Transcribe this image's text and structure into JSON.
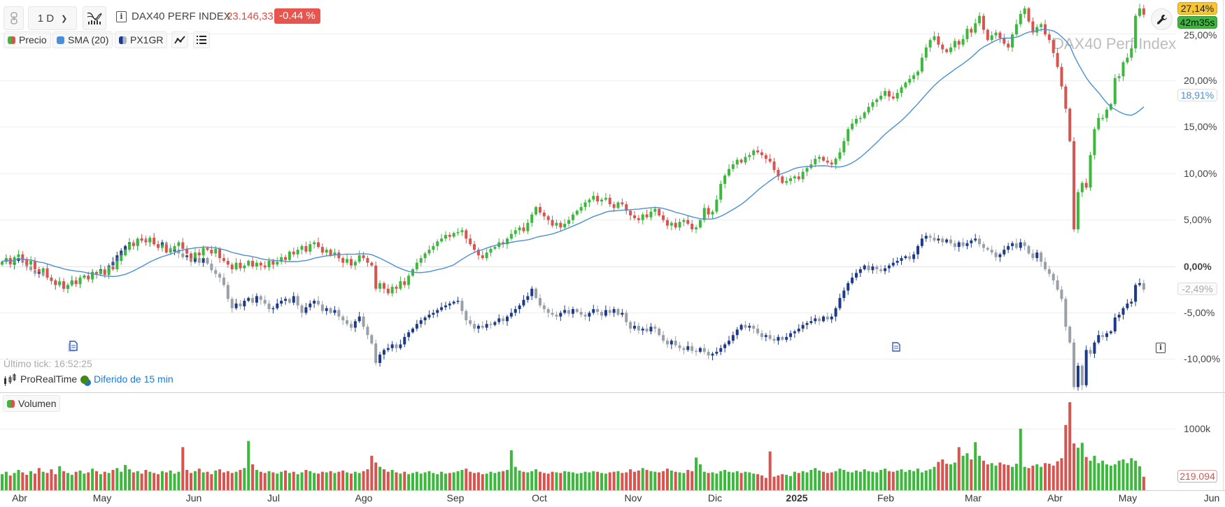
{
  "header": {
    "interval": "1 D",
    "instrument": "DAX40 PERF INDEX",
    "price": "23.146,33",
    "change": "-0.44 %"
  },
  "legend": {
    "price_label": "Precio",
    "sma_label": "SMA (20)",
    "compare_label": "PX1GR",
    "volume_label": "Volumen"
  },
  "watermark": "DAX40 Perf Index",
  "badges": {
    "last_pct": "27,14%",
    "countdown": "42m35s",
    "sma_value": "18,91%",
    "compare_value": "-2,49%",
    "last_volume": "219.094"
  },
  "footer": {
    "last_tick": "Último tick: 16:52:25",
    "provider": "ProRealTime",
    "delay": "Diferido de 15 min"
  },
  "colors": {
    "up": "#3cb93c",
    "down": "#d9534f",
    "compare_up": "#1c3a8c",
    "compare_down": "#9aa0a8",
    "sma": "#4a8fd9",
    "last_badge": "#f7c531",
    "countdown_badge": "#3cb93c",
    "change_badge": "#e8554e"
  },
  "chart_data": {
    "type": "candlestick",
    "y_axis": {
      "ticks": [
        "25,00%",
        "20,00%",
        "15,00%",
        "10,00%",
        "5,00%",
        "0,00%",
        "-5,00%",
        "-10,00%"
      ],
      "tick_values": [
        25,
        20,
        15,
        10,
        5,
        0,
        -5,
        -10
      ],
      "unit": "%"
    },
    "volume_axis": {
      "ticks": [
        "1000k"
      ],
      "tick_values": [
        1000
      ]
    },
    "x_axis": {
      "ticks": [
        "Abr",
        "May",
        "Jun",
        "Jul",
        "Ago",
        "Sep",
        "Oct",
        "Nov",
        "Dic",
        "2025",
        "Feb",
        "Mar",
        "Abr",
        "May",
        "Jun"
      ]
    },
    "grid": true,
    "series": [
      {
        "name": "DAX40 PERF INDEX",
        "kind": "candles",
        "closes_pct": [
          0.5,
          0.9,
          0.3,
          1.0,
          1.3,
          0.8,
          0.2,
          0.6,
          -0.3,
          -0.6,
          -0.2,
          -1.2,
          -1.5,
          -2.0,
          -1.6,
          -2.4,
          -2.0,
          -1.5,
          -1.9,
          -1.2,
          -1.0,
          -1.4,
          -0.6,
          -0.8,
          -0.4,
          -0.9,
          0.0,
          -0.3,
          0.6,
          1.2,
          1.8,
          2.5,
          2.2,
          3.0,
          2.8,
          2.6,
          3.1,
          2.4,
          2.0,
          2.3,
          1.5,
          1.8,
          2.2,
          2.6,
          1.9,
          1.4,
          0.9,
          1.5,
          1.2,
          2.0,
          1.8,
          1.4,
          1.9,
          0.9,
          0.6,
          0.2,
          -0.3,
          0.4,
          -0.2,
          0.1,
          0.6,
          0.0,
          0.4,
          0.1,
          -0.1,
          0.6,
          0.2,
          0.5,
          1.0,
          0.7,
          1.6,
          1.3,
          1.8,
          2.2,
          1.6,
          2.4,
          2.6,
          2.1,
          1.5,
          1.8,
          1.2,
          1.5,
          0.9,
          0.4,
          0.8,
          0.1,
          0.5,
          1.2,
          0.9,
          0.4,
          0.1,
          -2.4,
          -1.8,
          -2.4,
          -2.9,
          -2.2,
          -2.4,
          -1.6,
          -2.0,
          -1.0,
          -0.3,
          0.4,
          0.9,
          1.4,
          1.8,
          2.2,
          2.7,
          3.0,
          3.4,
          3.2,
          3.6,
          3.7,
          3.9,
          3.0,
          2.4,
          1.8,
          1.2,
          0.9,
          1.5,
          1.9,
          2.1,
          2.6,
          2.4,
          3.0,
          3.5,
          3.9,
          4.2,
          3.8,
          4.7,
          5.6,
          6.4,
          5.8,
          5.4,
          5.0,
          4.4,
          4.7,
          4.2,
          4.6,
          5.0,
          5.6,
          6.0,
          6.4,
          6.9,
          7.2,
          7.6,
          7.0,
          7.2,
          7.4,
          6.7,
          6.3,
          6.9,
          6.7,
          6.0,
          5.5,
          5.2,
          5.0,
          5.6,
          5.3,
          5.9,
          6.2,
          5.5,
          5.0,
          4.4,
          4.7,
          4.2,
          4.8,
          5.0,
          4.6,
          4.0,
          4.2,
          5.0,
          6.3,
          5.6,
          5.9,
          7.2,
          8.9,
          9.8,
          10.5,
          11.0,
          11.5,
          11.2,
          11.8,
          12.0,
          12.5,
          12.3,
          12.0,
          11.6,
          11.3,
          10.4,
          9.7,
          9.0,
          9.2,
          9.5,
          9.7,
          9.4,
          10.2,
          10.6,
          11.0,
          11.6,
          11.8,
          11.4,
          11.2,
          11.0,
          11.6,
          12.3,
          13.5,
          14.8,
          15.4,
          15.9,
          16.0,
          16.6,
          17.2,
          17.7,
          18.0,
          18.4,
          18.9,
          18.3,
          18.1,
          18.7,
          19.3,
          19.8,
          20.2,
          20.6,
          21.0,
          22.5,
          23.6,
          24.4,
          24.8,
          23.9,
          23.4,
          23.1,
          23.6,
          24.3,
          23.9,
          24.5,
          25.6,
          25.2,
          26.2,
          27.0,
          25.5,
          24.4,
          24.9,
          25.2,
          24.6,
          24.0,
          23.6,
          25.0,
          26.1,
          27.2,
          27.8,
          26.4,
          25.2,
          25.8,
          26.1,
          25.0,
          24.4,
          23.0,
          21.5,
          19.4,
          17.0,
          13.5,
          4.0,
          8.0,
          9.0,
          8.5,
          12.0,
          14.8,
          16.0,
          16.0,
          16.9,
          17.5,
          20.3,
          20.5,
          22.0,
          22.5,
          23.5,
          27.0,
          27.8,
          27.14
        ]
      },
      {
        "name": "PX1GR",
        "kind": "candles",
        "closes_pct": [
          0.5,
          0.8,
          0.2,
          0.6,
          0.9,
          0.4,
          0.0,
          -0.4,
          -0.8,
          -0.6,
          -1.0,
          -1.2,
          -1.6,
          -2.0,
          -1.8,
          -2.4,
          -2.0,
          -1.6,
          -1.9,
          -1.2,
          -1.0,
          -1.3,
          -0.6,
          -0.8,
          -0.3,
          -0.6,
          0.1,
          0.5,
          1.2,
          1.7,
          2.2,
          2.6,
          2.3,
          2.8,
          3.0,
          2.6,
          2.9,
          2.4,
          2.2,
          2.6,
          2.0,
          1.6,
          1.8,
          1.4,
          1.0,
          1.2,
          0.5,
          0.9,
          0.4,
          0.9,
          0.3,
          -0.4,
          -0.8,
          -1.2,
          -2.0,
          -3.5,
          -4.5,
          -4.0,
          -4.3,
          -3.7,
          -3.4,
          -3.9,
          -3.2,
          -3.6,
          -4.0,
          -4.6,
          -4.5,
          -4.0,
          -3.7,
          -3.5,
          -3.9,
          -3.2,
          -4.2,
          -5.0,
          -4.4,
          -4.0,
          -3.7,
          -4.1,
          -4.8,
          -4.5,
          -5.0,
          -4.7,
          -5.4,
          -5.8,
          -6.2,
          -6.6,
          -5.9,
          -5.4,
          -6.5,
          -7.4,
          -8.3,
          -10.4,
          -9.5,
          -9.0,
          -8.8,
          -8.4,
          -8.8,
          -8.4,
          -7.6,
          -7.1,
          -6.7,
          -6.2,
          -5.8,
          -5.5,
          -5.2,
          -5.0,
          -4.7,
          -4.4,
          -4.2,
          -4.0,
          -3.8,
          -3.7,
          -4.8,
          -5.8,
          -6.2,
          -6.7,
          -6.4,
          -6.6,
          -6.2,
          -6.3,
          -6.0,
          -5.6,
          -5.9,
          -5.4,
          -5.0,
          -4.6,
          -4.2,
          -3.6,
          -3.2,
          -2.4,
          -3.4,
          -4.2,
          -4.6,
          -5.0,
          -5.2,
          -5.4,
          -5.0,
          -4.7,
          -5.1,
          -4.6,
          -4.9,
          -5.2,
          -5.4,
          -5.0,
          -4.6,
          -4.9,
          -5.3,
          -4.7,
          -5.0,
          -4.6,
          -5.2,
          -5.0,
          -6.0,
          -6.7,
          -6.4,
          -6.9,
          -6.7,
          -7.0,
          -6.5,
          -6.7,
          -7.4,
          -8.0,
          -8.4,
          -8.0,
          -8.5,
          -8.8,
          -9.0,
          -8.6,
          -9.1,
          -9.2,
          -8.8,
          -9.2,
          -9.6,
          -9.4,
          -9.2,
          -8.8,
          -8.4,
          -8.0,
          -7.4,
          -6.8,
          -6.3,
          -6.6,
          -6.4,
          -6.7,
          -7.2,
          -7.6,
          -7.4,
          -7.8,
          -8.0,
          -7.6,
          -7.9,
          -7.6,
          -7.2,
          -7.0,
          -6.7,
          -6.3,
          -6.1,
          -5.9,
          -5.6,
          -5.9,
          -5.4,
          -5.7,
          -5.4,
          -4.5,
          -3.4,
          -2.6,
          -1.8,
          -1.2,
          -0.7,
          -0.3,
          0.1,
          -0.4,
          0.0,
          -0.3,
          -0.5,
          -0.2,
          0.1,
          0.4,
          0.6,
          0.9,
          1.1,
          0.8,
          1.3,
          2.2,
          3.0,
          3.3,
          3.1,
          2.8,
          3.0,
          2.6,
          2.9,
          2.5,
          2.1,
          2.6,
          2.2,
          2.5,
          2.8,
          3.0,
          2.4,
          2.0,
          1.8,
          1.5,
          1.0,
          1.3,
          1.8,
          2.2,
          2.5,
          2.0,
          2.6,
          2.2,
          1.4,
          0.9,
          1.5,
          0.5,
          -0.3,
          -0.8,
          -1.5,
          -2.5,
          -3.5,
          -6.5,
          -8.2,
          -13.0,
          -10.7,
          -12.8,
          -9.0,
          -9.4,
          -8.2,
          -7.4,
          -7.6,
          -7.2,
          -7.0,
          -5.5,
          -5.2,
          -4.5,
          -4.0,
          -3.8,
          -2.0,
          -1.8,
          -2.49
        ]
      },
      {
        "name": "SMA (20)",
        "kind": "line",
        "period": 20,
        "of": "DAX40 PERF INDEX",
        "last_pct": 18.91
      },
      {
        "name": "Volumen",
        "kind": "bars",
        "unit": "k",
        "values": [
          260,
          300,
          240,
          280,
          330,
          290,
          250,
          310,
          270,
          360,
          300,
          280,
          340,
          260,
          390,
          310,
          280,
          250,
          300,
          320,
          270,
          290,
          350,
          310,
          260,
          300,
          280,
          330,
          360,
          300,
          410,
          340,
          290,
          310,
          270,
          330,
          300,
          280,
          260,
          310,
          290,
          320,
          270,
          300,
          700,
          330,
          280,
          310,
          350,
          290,
          300,
          260,
          320,
          340,
          290,
          310,
          280,
          300,
          330,
          360,
          800,
          420,
          330,
          300,
          280,
          310,
          290,
          270,
          300,
          320,
          280,
          300,
          260,
          290,
          330,
          310,
          280,
          270,
          300,
          290,
          310,
          280,
          300,
          320,
          290,
          270,
          300,
          280,
          310,
          340,
          560,
          450,
          380,
          340,
          300,
          330,
          290,
          270,
          300,
          260,
          280,
          300,
          270,
          290,
          310,
          280,
          260,
          300,
          270,
          280,
          290,
          310,
          330,
          350,
          300,
          280,
          290,
          260,
          270,
          300,
          280,
          300,
          310,
          330,
          650,
          380,
          320,
          300,
          290,
          310,
          340,
          300,
          280,
          270,
          300,
          290,
          280,
          310,
          300,
          290,
          270,
          280,
          300,
          290,
          310,
          300,
          280,
          270,
          290,
          300,
          310,
          280,
          290,
          340,
          300,
          320,
          360,
          330,
          310,
          300,
          290,
          310,
          350,
          320,
          300,
          290,
          280,
          330,
          310,
          530,
          420,
          300,
          280,
          290,
          270,
          310,
          330,
          300,
          290,
          310,
          280,
          300,
          290,
          270,
          260,
          240,
          200,
          630,
          220,
          240,
          260,
          250,
          230,
          300,
          280,
          310,
          290,
          330,
          360,
          320,
          300,
          280,
          290,
          310,
          350,
          330,
          300,
          290,
          320,
          300,
          340,
          310,
          300,
          290,
          330,
          350,
          310,
          300,
          320,
          340,
          300,
          330,
          310,
          350,
          290,
          320,
          340,
          380,
          460,
          500,
          430,
          420,
          450,
          700,
          560,
          600,
          500,
          780,
          560,
          480,
          420,
          440,
          400,
          450,
          420,
          410,
          380,
          430,
          1000,
          380,
          360,
          400,
          420,
          380,
          440,
          430,
          400,
          470,
          520,
          1060,
          1430,
          760,
          690,
          770,
          540,
          480,
          560,
          440,
          480,
          420,
          400,
          420,
          480,
          500,
          440,
          520,
          480,
          390,
          219.094
        ]
      }
    ]
  }
}
